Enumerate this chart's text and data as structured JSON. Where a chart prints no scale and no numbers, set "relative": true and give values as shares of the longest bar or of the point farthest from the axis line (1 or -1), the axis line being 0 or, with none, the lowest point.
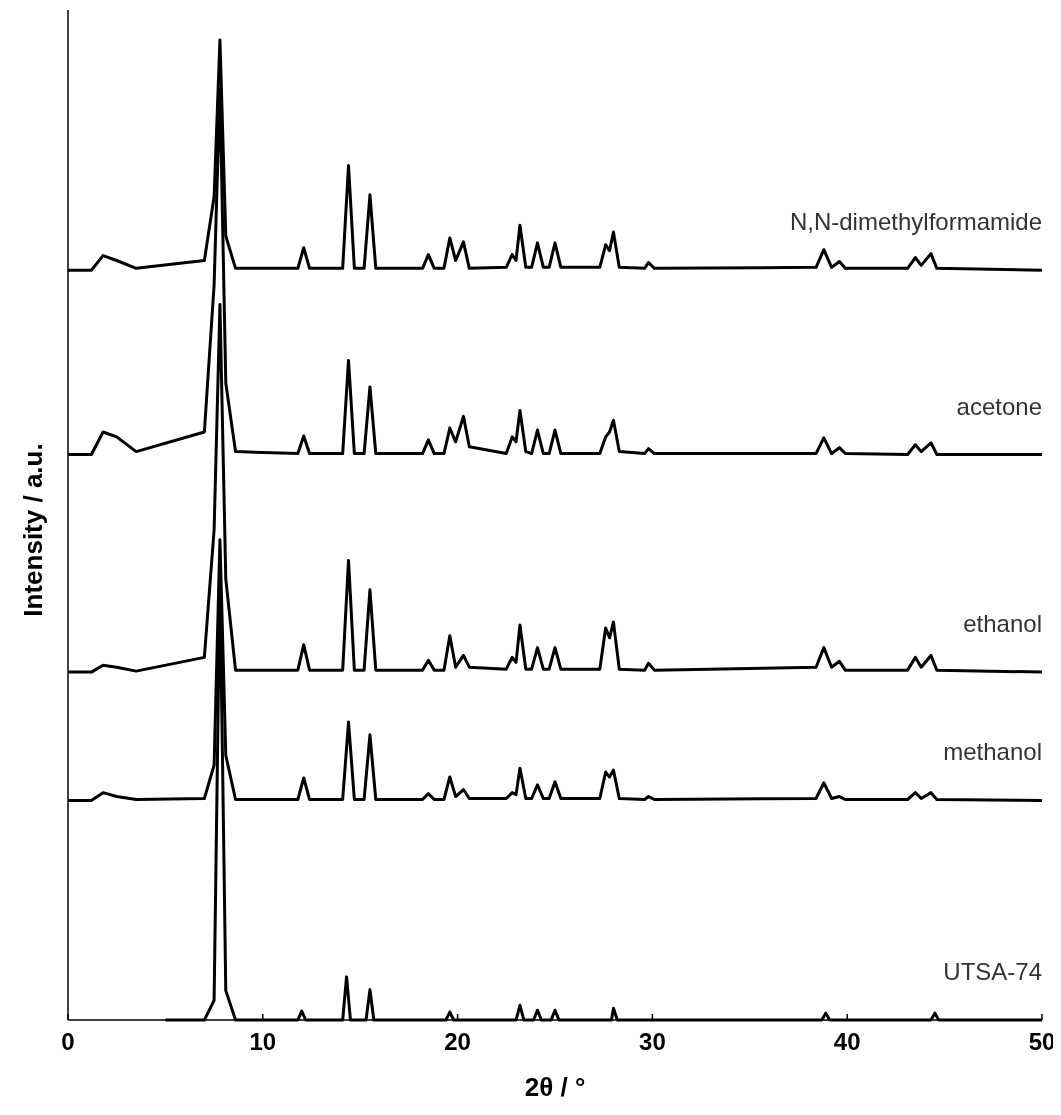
{
  "chart_data": {
    "type": "line",
    "relative": true,
    "xlabel": "2θ / °",
    "ylabel": "Intensity / a.u.",
    "xlim": [
      0,
      50
    ],
    "xticks": [
      0,
      10,
      20,
      30,
      40,
      50
    ],
    "legend": false,
    "grid": false,
    "marker": "none",
    "line_style": "solid",
    "x": [
      0,
      1.2,
      1.8,
      2.5,
      3.5,
      7.0,
      7.5,
      7.8,
      8.1,
      8.6,
      11.8,
      12.1,
      12.4,
      14.1,
      14.4,
      14.7,
      15.2,
      15.5,
      15.8,
      18.2,
      18.5,
      18.8,
      19.3,
      19.6,
      19.9,
      20.3,
      20.6,
      22.5,
      22.8,
      23.0,
      23.2,
      23.5,
      23.8,
      24.1,
      24.4,
      24.7,
      25.0,
      25.3,
      27.3,
      27.6,
      27.8,
      28.0,
      28.3,
      29.6,
      29.8,
      30.1,
      38.4,
      38.8,
      39.2,
      39.6,
      39.9,
      43.1,
      43.5,
      43.8,
      44.3,
      44.6,
      50
    ],
    "series": [
      {
        "name": "N,N-dimethylformamide",
        "color": "#000000",
        "values": [
          0.765,
          0.765,
          0.78,
          0.775,
          0.767,
          0.775,
          0.84,
          1.0,
          0.8,
          0.767,
          0.767,
          0.788,
          0.767,
          0.767,
          0.872,
          0.767,
          0.767,
          0.842,
          0.767,
          0.767,
          0.781,
          0.767,
          0.767,
          0.798,
          0.775,
          0.794,
          0.767,
          0.768,
          0.781,
          0.775,
          0.811,
          0.768,
          0.768,
          0.793,
          0.768,
          0.768,
          0.793,
          0.768,
          0.768,
          0.791,
          0.785,
          0.804,
          0.768,
          0.767,
          0.773,
          0.767,
          0.768,
          0.786,
          0.768,
          0.774,
          0.767,
          0.767,
          0.778,
          0.77,
          0.782,
          0.767,
          0.765
        ]
      },
      {
        "name": "acetone",
        "color": "#000000",
        "values": [
          0.577,
          0.577,
          0.6,
          0.595,
          0.58,
          0.6,
          0.75,
          0.95,
          0.65,
          0.58,
          0.578,
          0.596,
          0.578,
          0.578,
          0.673,
          0.578,
          0.578,
          0.646,
          0.578,
          0.578,
          0.592,
          0.578,
          0.578,
          0.604,
          0.59,
          0.616,
          0.585,
          0.578,
          0.595,
          0.59,
          0.622,
          0.58,
          0.578,
          0.602,
          0.578,
          0.578,
          0.602,
          0.578,
          0.578,
          0.595,
          0.6,
          0.612,
          0.58,
          0.578,
          0.583,
          0.578,
          0.578,
          0.594,
          0.578,
          0.584,
          0.578,
          0.577,
          0.587,
          0.58,
          0.589,
          0.577,
          0.577
        ]
      },
      {
        "name": "ethanol",
        "color": "#000000",
        "values": [
          0.355,
          0.355,
          0.362,
          0.36,
          0.356,
          0.37,
          0.5,
          0.73,
          0.45,
          0.357,
          0.357,
          0.383,
          0.357,
          0.357,
          0.469,
          0.357,
          0.357,
          0.439,
          0.357,
          0.357,
          0.367,
          0.357,
          0.357,
          0.392,
          0.36,
          0.372,
          0.36,
          0.358,
          0.37,
          0.365,
          0.403,
          0.358,
          0.358,
          0.38,
          0.358,
          0.358,
          0.38,
          0.358,
          0.358,
          0.4,
          0.39,
          0.406,
          0.358,
          0.357,
          0.364,
          0.357,
          0.36,
          0.38,
          0.36,
          0.366,
          0.357,
          0.357,
          0.37,
          0.36,
          0.372,
          0.357,
          0.355
        ]
      },
      {
        "name": "methanol",
        "color": "#000000",
        "values": [
          0.224,
          0.224,
          0.232,
          0.228,
          0.225,
          0.226,
          0.26,
          0.49,
          0.27,
          0.225,
          0.225,
          0.247,
          0.225,
          0.225,
          0.304,
          0.225,
          0.225,
          0.291,
          0.225,
          0.225,
          0.231,
          0.225,
          0.225,
          0.248,
          0.228,
          0.235,
          0.226,
          0.226,
          0.232,
          0.23,
          0.257,
          0.226,
          0.226,
          0.24,
          0.226,
          0.226,
          0.243,
          0.226,
          0.226,
          0.253,
          0.248,
          0.255,
          0.226,
          0.225,
          0.228,
          0.225,
          0.226,
          0.242,
          0.226,
          0.228,
          0.225,
          0.225,
          0.232,
          0.226,
          0.232,
          0.225,
          0.224
        ]
      },
      {
        "name": "UTSA-74",
        "color": "#000000",
        "x": [
          5,
          7.0,
          7.5,
          7.8,
          8.1,
          8.6,
          11.8,
          12.0,
          12.2,
          14.1,
          14.3,
          14.5,
          15.3,
          15.5,
          15.7,
          19.4,
          19.6,
          19.8,
          23.0,
          23.2,
          23.4,
          23.9,
          24.1,
          24.3,
          24.8,
          25.0,
          25.2,
          27.9,
          28.0,
          28.2,
          38.7,
          38.9,
          39.1,
          44.3,
          44.5,
          44.7,
          50
        ],
        "values": [
          0,
          0,
          0.02,
          0.45,
          0.03,
          0,
          0,
          0.009,
          0,
          0,
          0.044,
          0,
          0,
          0.031,
          0,
          0,
          0.008,
          0,
          0,
          0.015,
          0,
          0,
          0.01,
          0,
          0,
          0.01,
          0,
          0,
          0.012,
          0,
          0,
          0.007,
          0,
          0,
          0.007,
          0,
          0
        ]
      }
    ]
  }
}
